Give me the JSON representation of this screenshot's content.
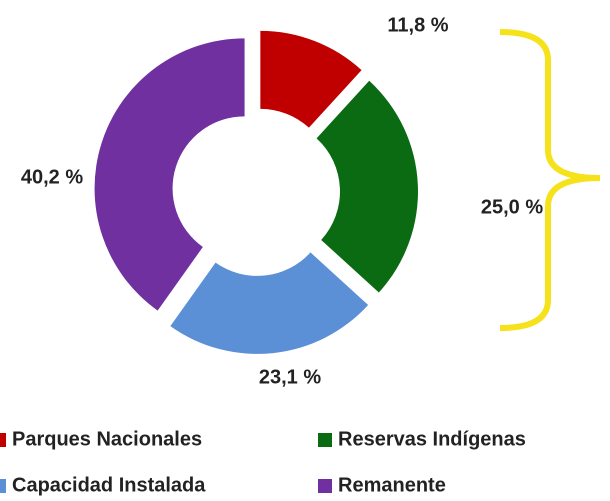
{
  "chart_data": {
    "type": "donut",
    "categories": [
      "Parques Nacionales",
      "Reservas Indígenas",
      "Capacidad Instalada",
      "Remanente"
    ],
    "values": [
      11.8,
      25.0,
      23.1,
      40.2
    ],
    "value_labels": [
      "11,8 %",
      "25,0 %",
      "23,1 %",
      "40,2 %"
    ],
    "colors": [
      "#c00000",
      "#0b6b12",
      "#5b8fd6",
      "#7030a0"
    ]
  }
}
